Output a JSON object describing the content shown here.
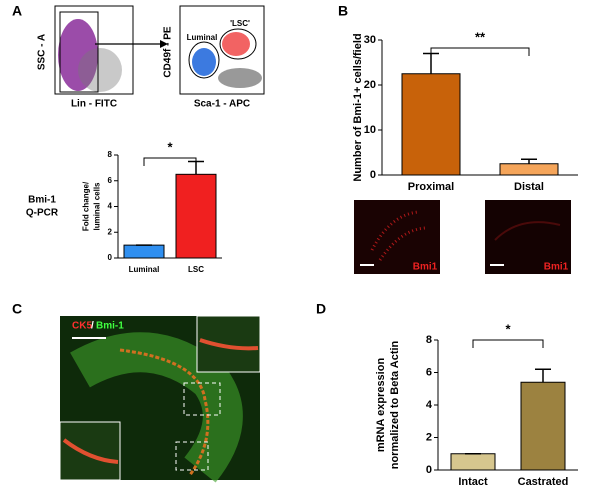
{
  "figure": {
    "panels": [
      "A",
      "B",
      "C",
      "D"
    ],
    "flow_left": {
      "ylabel": "SSC - A",
      "xlabel": "Lin - FITC"
    },
    "flow_right": {
      "ylabel": "CD49f - PE",
      "xlabel": "Sca-1 - APC",
      "gates": [
        "Luminal",
        "'LSC'"
      ]
    },
    "side_label": [
      "Bmi-1",
      "Q-PCR"
    ],
    "stain_labels": [
      "Bmi1",
      "Bmi1"
    ],
    "image_c": {
      "stain_a": "CK5",
      "separator": "/",
      "stain_b": "Bmi-1"
    }
  },
  "chart_data": [
    {
      "type": "bar",
      "categories": [
        "Luminal",
        "LSC"
      ],
      "values": [
        1,
        6.5
      ],
      "errors": [
        0,
        1.0
      ],
      "colors": [
        "#2f8ff0",
        "#f02020"
      ],
      "ylabel": [
        "Fold change/",
        "luminal cells"
      ],
      "ylim": [
        0,
        8
      ],
      "yticks": [
        0,
        2,
        4,
        6,
        8
      ],
      "significance": "*"
    },
    {
      "type": "bar",
      "categories": [
        "Proximal",
        "Distal"
      ],
      "values": [
        22.5,
        2.5
      ],
      "errors": [
        4.5,
        1.0
      ],
      "colors": [
        "#c8620a",
        "#f5a55a"
      ],
      "ylabel": [
        "Number of Bmi-1+ cells/field"
      ],
      "ylim": [
        0,
        30
      ],
      "yticks": [
        0,
        10,
        20,
        30
      ],
      "significance": "**"
    },
    {
      "type": "bar",
      "categories": [
        "Intact",
        "Castrated"
      ],
      "values": [
        1,
        5.4
      ],
      "errors": [
        0,
        0.8
      ],
      "colors": [
        "#d6c68e",
        "#9c8240"
      ],
      "ylabel": [
        "mRNA expression",
        "normalized to Beta Actin"
      ],
      "ylim": [
        0,
        8
      ],
      "yticks": [
        0,
        2,
        4,
        6,
        8
      ],
      "significance": "*"
    }
  ]
}
